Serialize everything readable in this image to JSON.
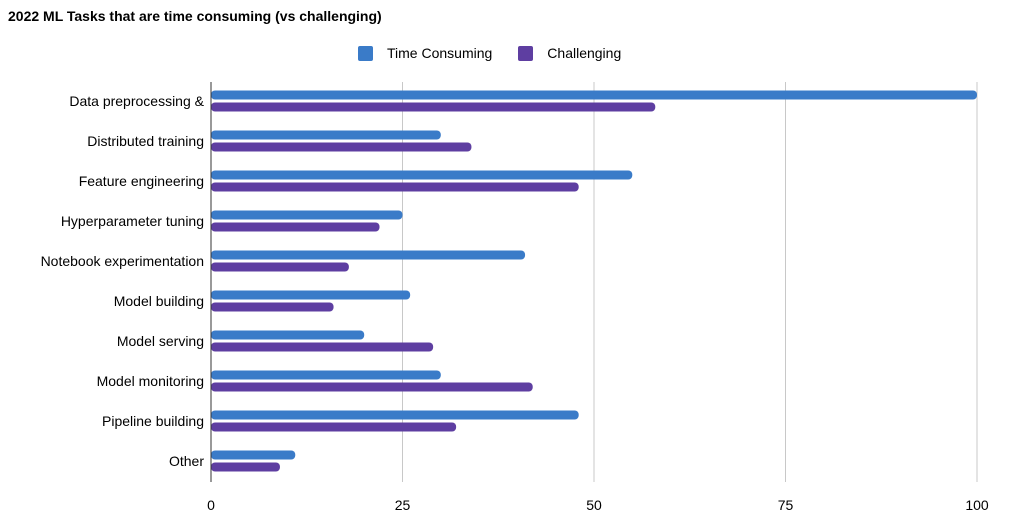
{
  "chart_data": {
    "type": "bar",
    "orientation": "horizontal",
    "title": "2022 ML Tasks that are time consuming (vs challenging)",
    "xlabel": "",
    "ylabel": "",
    "categories": [
      "Data preprocessing &",
      "Distributed training",
      "Feature engineering",
      "Hyperparameter tuning",
      "Notebook experimentation",
      "Model building",
      "Model serving",
      "Model monitoring",
      "Pipeline building",
      "Other"
    ],
    "series": [
      {
        "name": "Time Consuming",
        "color": "#3a7bc8",
        "values": [
          100,
          30,
          55,
          25,
          41,
          26,
          20,
          30,
          48,
          11
        ]
      },
      {
        "name": "Challenging",
        "color": "#5e3ea1",
        "values": [
          58,
          34,
          48,
          22,
          18,
          16,
          29,
          42,
          32,
          9
        ]
      }
    ],
    "xlim": [
      0,
      100
    ],
    "xticks": [
      "0",
      "25",
      "50",
      "75",
      "100"
    ],
    "grid": true,
    "legend_position": "top-center"
  }
}
